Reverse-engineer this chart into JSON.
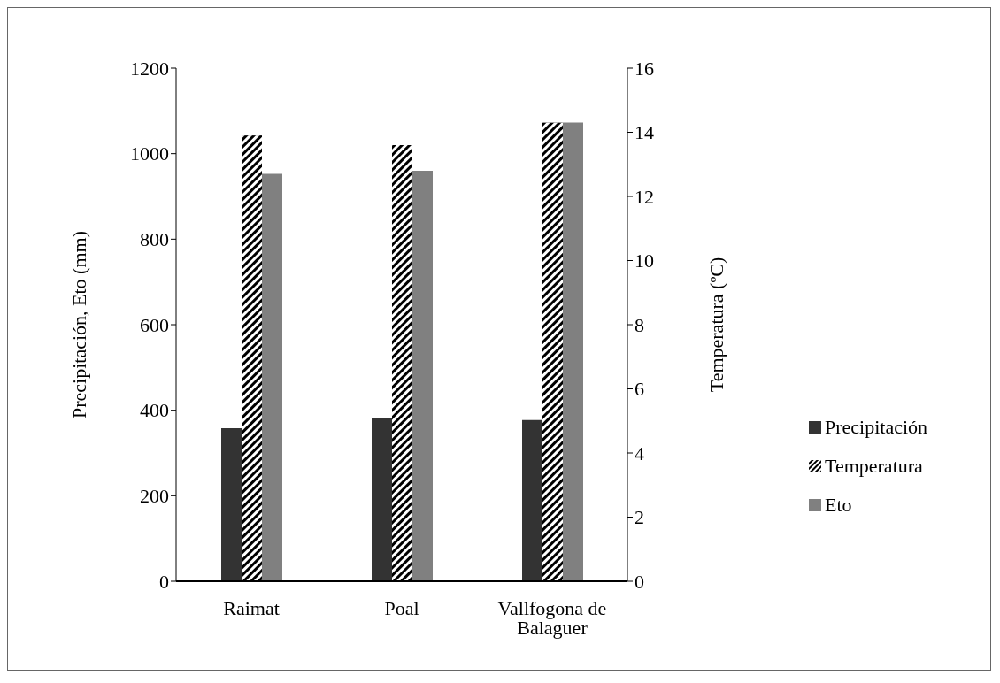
{
  "chart_data": {
    "type": "bar",
    "categories": [
      "Raimat",
      "Poal",
      "Vallfogona de Balaguer"
    ],
    "ylabel": "Precipitación, Eto (mm)",
    "y2label": "Temperatura (ºC)",
    "series": [
      {
        "name": "Precipitación",
        "color": "#333333",
        "values": [
          358,
          382,
          377
        ]
      },
      {
        "name": "Temperatura",
        "color": "#000000",
        "axis": "y2",
        "values": [
          13.9,
          13.6,
          14.3
        ]
      },
      {
        "name": "Eto",
        "color": "#808080",
        "values": [
          953,
          960,
          1073
        ]
      }
    ],
    "ylim": [
      0,
      1200
    ],
    "yticks": [
      0,
      200,
      400,
      600,
      800,
      1000,
      1200
    ],
    "y2lim": [
      0,
      16
    ],
    "y2ticks": [
      0,
      2,
      4,
      6,
      8,
      10,
      12,
      14,
      16
    ],
    "grid": false,
    "legend": "right"
  }
}
